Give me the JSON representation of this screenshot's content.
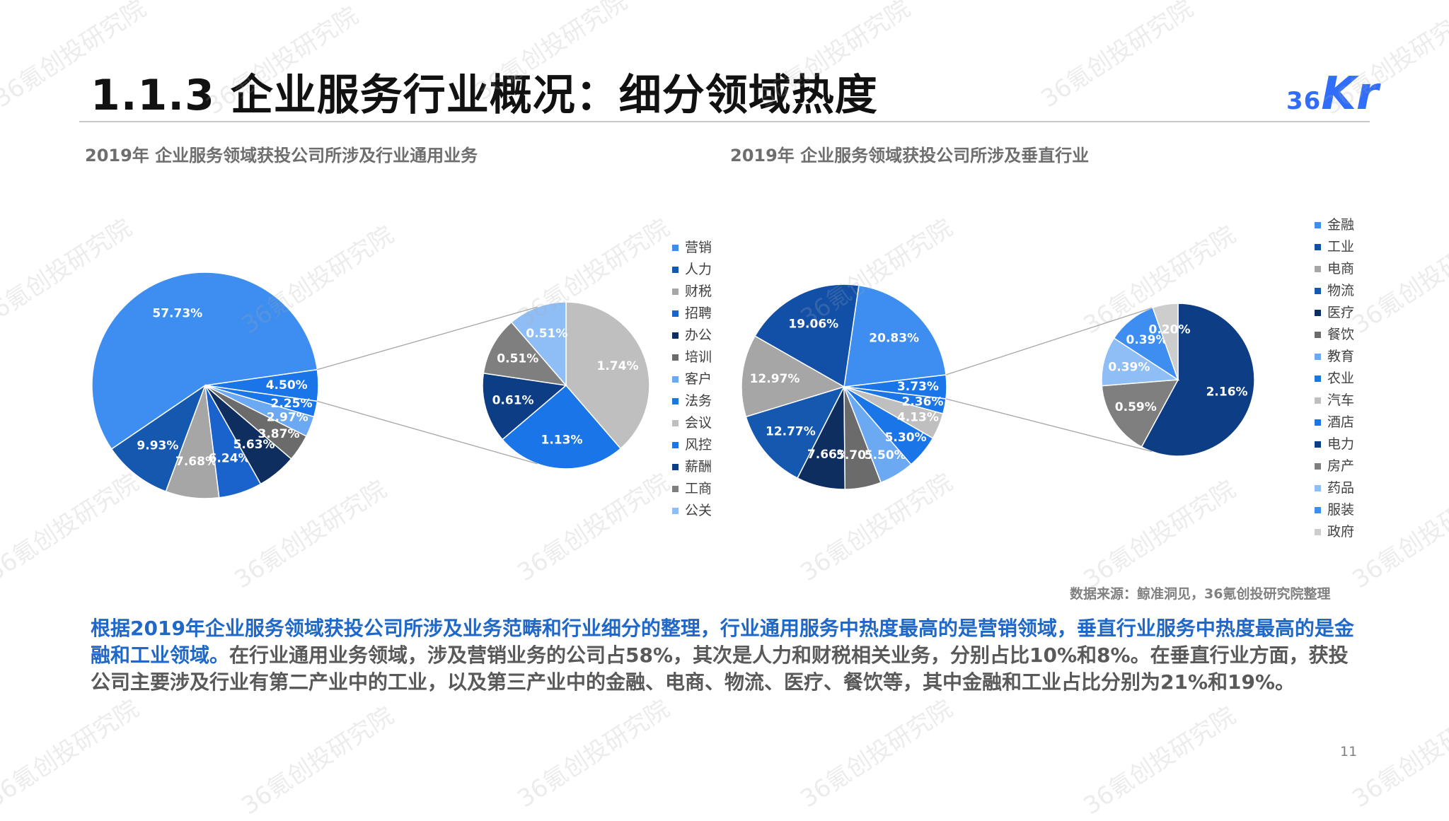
{
  "header": {
    "title": "1.1.3 企业服务行业概况：细分领域热度",
    "logo_number": "36",
    "logo_letters": "Kr"
  },
  "watermark": "36氪创投研究院",
  "colors": {
    "accent": "#2068c8",
    "logo": "#2f6dfa"
  },
  "chart_data": [
    {
      "type": "pie",
      "variant": "pie-of-pie",
      "title": "2019年 企业服务领域获投公司所涉及行业通用业务",
      "legend_position": "right",
      "slices": [
        {
          "name": "营销",
          "value": 57.73,
          "label": "57.73%",
          "color": "#3d8ef0"
        },
        {
          "name": "人力",
          "value": 9.93,
          "label": "9.93%",
          "color": "#1558b0"
        },
        {
          "name": "财税",
          "value": 7.68,
          "label": "7.68%",
          "color": "#a6a6a6"
        },
        {
          "name": "招聘",
          "value": 6.24,
          "label": "6.24%",
          "color": "#1b63cc"
        },
        {
          "name": "办公",
          "value": 5.63,
          "label": "5.63%",
          "color": "#0e2e60"
        },
        {
          "name": "培训",
          "value": 3.87,
          "label": "3.87%",
          "color": "#6b6b6b"
        },
        {
          "name": "客户",
          "value": 2.97,
          "label": "2.97%",
          "color": "#6ba9f3"
        },
        {
          "name": "法务",
          "value": 2.25,
          "label": "2.25%",
          "color": "#1a75e8"
        },
        {
          "name": "会议",
          "value": 1.74,
          "label": "1.74%",
          "color": "#bfbfbf"
        },
        {
          "name": "风控",
          "value": 1.13,
          "label": "1.13%",
          "color": "#1a75e8"
        },
        {
          "name": "薪酬",
          "value": 0.61,
          "label": "0.61%",
          "color": "#0c3d85"
        },
        {
          "name": "工商",
          "value": 0.51,
          "label": "0.51%",
          "color": "#7f7f7f"
        },
        {
          "name": "公关",
          "value": 0.51,
          "label": "0.51%",
          "color": "#8fbef6"
        }
      ],
      "other_group": {
        "value": 4.5,
        "label": "4.50%",
        "members": [
          "会议",
          "风控",
          "薪酬",
          "工商",
          "公关"
        ]
      }
    },
    {
      "type": "pie",
      "variant": "pie-of-pie",
      "title": "2019年 企业服务领域获投公司所涉及垂直行业",
      "legend_position": "right",
      "slices": [
        {
          "name": "金融",
          "value": 20.83,
          "label": "20.83%",
          "color": "#3d8ef0"
        },
        {
          "name": "工业",
          "value": 19.06,
          "label": "19.06%",
          "color": "#1250a8"
        },
        {
          "name": "电商",
          "value": 12.97,
          "label": "12.97%",
          "color": "#a6a6a6"
        },
        {
          "name": "物流",
          "value": 12.77,
          "label": "12.77%",
          "color": "#1558b0"
        },
        {
          "name": "医疗",
          "value": 7.66,
          "label": "7.66%",
          "color": "#0e2e60"
        },
        {
          "name": "餐饮",
          "value": 5.7,
          "label": "5.70%",
          "color": "#6b6b6b"
        },
        {
          "name": "教育",
          "value": 5.5,
          "label": "5.50%",
          "color": "#6ba9f3"
        },
        {
          "name": "农业",
          "value": 5.3,
          "label": "5.30%",
          "color": "#1a75e8"
        },
        {
          "name": "汽车",
          "value": 4.13,
          "label": "4.13%",
          "color": "#bfbfbf"
        },
        {
          "name": "酒店",
          "value": 2.36,
          "label": "2.36%",
          "color": "#1a75e8"
        },
        {
          "name": "电力",
          "value": 2.16,
          "label": "2.16%",
          "color": "#0c3d85"
        },
        {
          "name": "房产",
          "value": 0.59,
          "label": "0.59%",
          "color": "#7f7f7f"
        },
        {
          "name": "药品",
          "value": 0.39,
          "label": "0.39%",
          "color": "#8fbef6"
        },
        {
          "name": "服装",
          "value": 0.39,
          "label": "0.39%",
          "color": "#3d8ef0"
        },
        {
          "name": "政府",
          "value": 0.2,
          "label": "0.20%",
          "color": "#cdcdcd"
        }
      ],
      "other_group": {
        "value": 3.73,
        "label": "3.73%",
        "members": [
          "电力",
          "房产",
          "药品",
          "服装",
          "政府"
        ]
      }
    }
  ],
  "source": "数据来源：鲸准洞见，36氪创投研究院整理",
  "summary": {
    "highlight": "根据2019年企业服务领域获投公司所涉及业务范畴和行业细分的整理，行业通用服务中热度最高的是营销领域，垂直行业服务中热度最高的是金融和工业领域。",
    "body": "在行业通用业务领域，涉及营销业务的公司占58%，其次是人力和财税相关业务，分别占比10%和8%。在垂直行业方面，获投公司主要涉及行业有第二产业中的工业，以及第三产业中的金融、电商、物流、医疗、餐饮等，其中金融和工业占比分别为21%和19%。"
  },
  "page_number": "11"
}
